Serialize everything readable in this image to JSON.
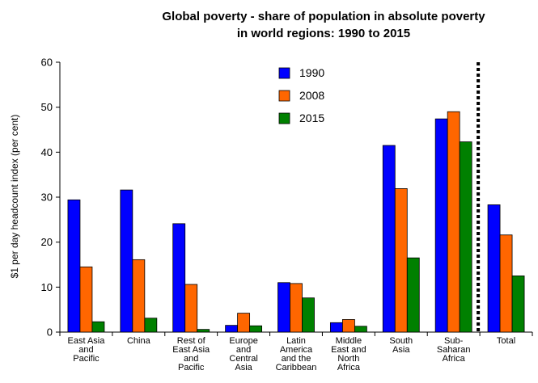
{
  "chart_data": {
    "type": "bar",
    "title_lines": [
      "Global poverty - share of population in absolute poverty",
      "in world regions: 1990 to 2015"
    ],
    "ylabel": "$1 per day headcount index (per cent)",
    "xlabel": "",
    "ylim": [
      0,
      60
    ],
    "yticks": [
      0,
      10,
      20,
      30,
      40,
      50,
      60
    ],
    "grid": false,
    "legend_position": "top-center",
    "categories": [
      [
        "East Asia",
        "and",
        "Pacific"
      ],
      [
        "China"
      ],
      [
        "Rest of",
        "East Asia",
        "and",
        "Pacific"
      ],
      [
        "Europe",
        "and",
        "Central",
        "Asia"
      ],
      [
        "Latin",
        "America",
        "and the",
        "Caribbean"
      ],
      [
        "Middle",
        "East and",
        "North",
        "Africa"
      ],
      [
        "South",
        "Asia"
      ],
      [
        "Sub-",
        "Saharan",
        "Africa"
      ],
      [
        "Total"
      ]
    ],
    "series": [
      {
        "name": "1990",
        "color": "#0000ff",
        "values": [
          29.4,
          31.6,
          24.1,
          1.5,
          11.0,
          2.1,
          41.5,
          47.4,
          28.3
        ]
      },
      {
        "name": "2008",
        "color": "#ff6600",
        "values": [
          14.5,
          16.1,
          10.6,
          4.2,
          10.8,
          2.8,
          31.9,
          49.0,
          21.6
        ]
      },
      {
        "name": "2015",
        "color": "#008000",
        "values": [
          2.3,
          3.1,
          0.6,
          1.4,
          7.6,
          1.3,
          16.5,
          42.3,
          12.5
        ]
      }
    ],
    "separator_before_category": 8
  }
}
